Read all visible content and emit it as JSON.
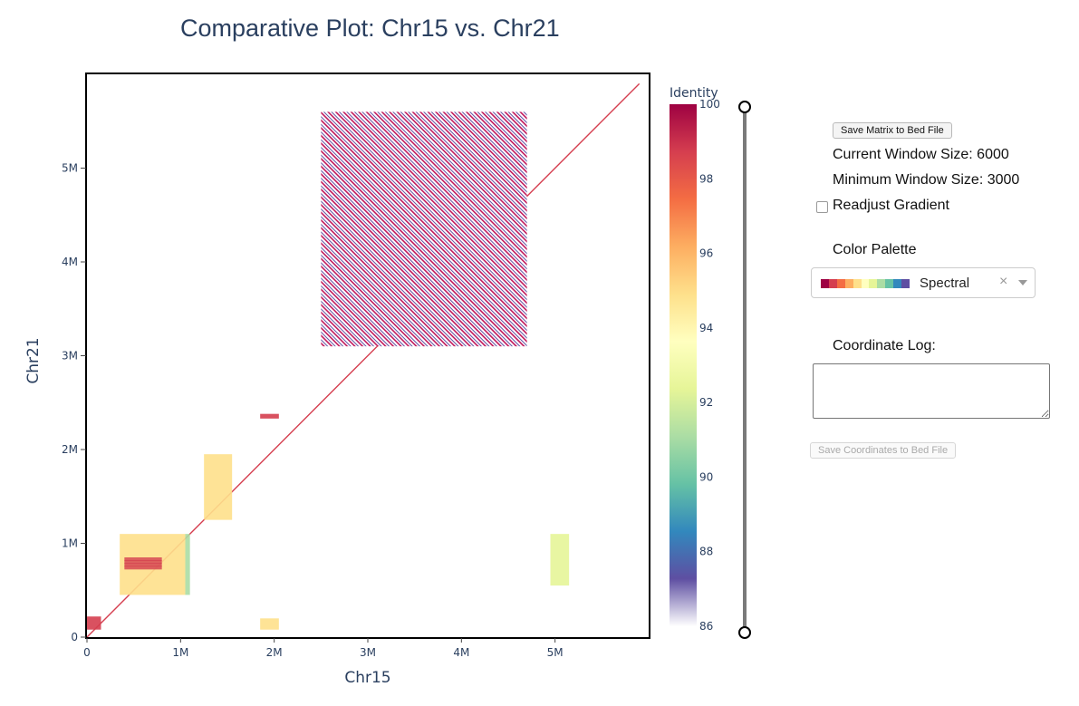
{
  "plot": {
    "title": "Comparative Plot: Chr15 vs. Chr21",
    "x_title": "Chr15",
    "y_title": "Chr21",
    "x_ticks": [
      "0",
      "1M",
      "2M",
      "3M",
      "4M",
      "5M"
    ],
    "y_ticks": [
      "0",
      "1M",
      "2M",
      "3M",
      "4M",
      "5M"
    ],
    "colorbar_title": "Identity",
    "colorbar_ticks": [
      "100",
      "98",
      "96",
      "94",
      "92",
      "90",
      "88",
      "86"
    ]
  },
  "chart_data": {
    "type": "heatmap",
    "title": "Comparative Plot: Chr15 vs. Chr21",
    "xlabel": "Chr15",
    "ylabel": "Chr21",
    "xlim": [
      0,
      6000000
    ],
    "ylim": [
      0,
      6000000
    ],
    "zlim": [
      86,
      100
    ],
    "colorbar_label": "Identity",
    "colormap": "Spectral",
    "regions": [
      {
        "x": [
          2500000,
          4700000
        ],
        "y": [
          3100000,
          5600000
        ],
        "identity": 98,
        "pattern": "dense diagonal stripes"
      },
      {
        "x": [
          350000,
          1050000
        ],
        "y": [
          450000,
          1100000
        ],
        "identity": 94
      },
      {
        "x": [
          1250000,
          1550000
        ],
        "y": [
          1250000,
          1950000
        ],
        "identity": 95
      },
      {
        "x": [
          0,
          150000
        ],
        "y": [
          80000,
          220000
        ],
        "identity": 99
      },
      {
        "x": [
          1850000,
          2050000
        ],
        "y": [
          80000,
          200000
        ],
        "identity": 95
      },
      {
        "x": [
          4950000,
          5150000
        ],
        "y": [
          550000,
          1100000
        ],
        "identity": 91
      },
      {
        "x": [
          1050000,
          1100000
        ],
        "y": [
          450000,
          1100000
        ],
        "identity": 90
      },
      {
        "x": [
          1850000,
          2050000
        ],
        "y": [
          2330000,
          2380000
        ],
        "identity": 99
      }
    ]
  },
  "colors": {
    "spectral": [
      "#9e0142",
      "#d53e4f",
      "#f46d43",
      "#fdae61",
      "#fee08b",
      "#ffffbf",
      "#e6f598",
      "#abdda4",
      "#66c2a5",
      "#3288bd",
      "#5e4fa2"
    ],
    "axis": "#2a3f5f"
  },
  "slider": {
    "orientation": "vertical"
  },
  "controls": {
    "save_matrix_label": "Save Matrix to Bed File",
    "current_window": "Current Window Size: 6000",
    "minimum_window": "Minimum Window Size: 3000",
    "readjust_label": "Readjust Gradient",
    "readjust_checked": false,
    "palette_label": "Color Palette",
    "palette_value": "Spectral",
    "palette_clear_icon": "close-icon",
    "palette_caret_icon": "chevron-down-icon",
    "coord_log_label": "Coordinate Log:",
    "coord_log_value": "",
    "save_coords_label": "Save Coordinates to Bed File"
  }
}
